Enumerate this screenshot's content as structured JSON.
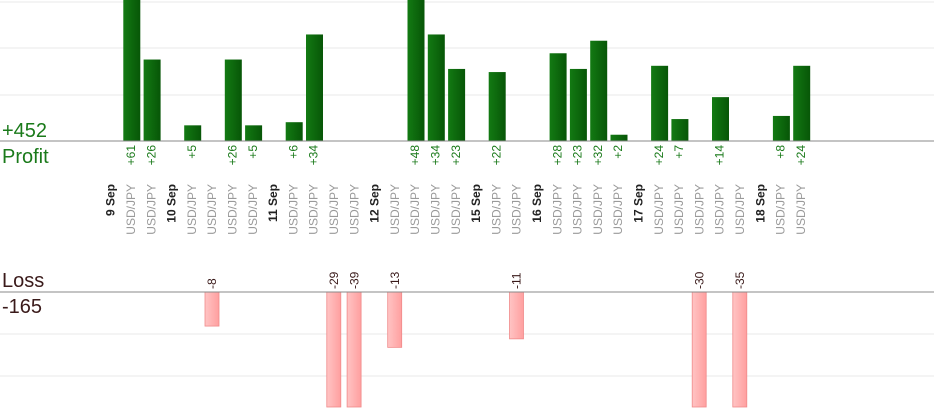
{
  "profit_label": "Profit",
  "profit_total": "+452",
  "loss_label": "Loss",
  "loss_total": "-165",
  "colors": {
    "profit_bar": "#0e6b0e",
    "profit_text": "#1a7a1a",
    "loss_bar": "#ffb0b0",
    "loss_bar_edge": "#f08a8a",
    "loss_text": "#3a1a1a",
    "axis": "#888888",
    "grid": "#e8e8e8"
  },
  "chart_data": {
    "type": "bar",
    "profit_max_visible": 45,
    "loss_max_visible": 27,
    "days": [
      {
        "label": "9 Sep",
        "trades": [
          {
            "symbol": "USD/JPY",
            "value": 61,
            "label": "+61"
          },
          {
            "symbol": "USD/JPY",
            "value": 26,
            "label": "+26"
          }
        ]
      },
      {
        "label": "10 Sep",
        "trades": [
          {
            "symbol": "USD/JPY",
            "value": 5,
            "label": "+5"
          },
          {
            "symbol": "USD/JPY",
            "value": -8,
            "label": "-8"
          },
          {
            "symbol": "USD/JPY",
            "value": 26,
            "label": "+26"
          },
          {
            "symbol": "USD/JPY",
            "value": 5,
            "label": "+5"
          }
        ]
      },
      {
        "label": "11 Sep",
        "trades": [
          {
            "symbol": "USD/JPY",
            "value": 6,
            "label": "+6"
          },
          {
            "symbol": "USD/JPY",
            "value": 34,
            "label": "+34"
          },
          {
            "symbol": "USD/JPY",
            "value": -29,
            "label": "-29"
          },
          {
            "symbol": "USD/JPY",
            "value": -39,
            "label": "-39"
          }
        ]
      },
      {
        "label": "12 Sep",
        "trades": [
          {
            "symbol": "USD/JPY",
            "value": -13,
            "label": "-13"
          },
          {
            "symbol": "USD/JPY",
            "value": 48,
            "label": "+48"
          },
          {
            "symbol": "USD/JPY",
            "value": 34,
            "label": "+34"
          },
          {
            "symbol": "USD/JPY",
            "value": 23,
            "label": "+23"
          }
        ]
      },
      {
        "label": "15 Sep",
        "trades": [
          {
            "symbol": "USD/JPY",
            "value": 22,
            "label": "+22"
          },
          {
            "symbol": "USD/JPY",
            "value": -11,
            "label": "-11"
          }
        ]
      },
      {
        "label": "16 Sep",
        "trades": [
          {
            "symbol": "USD/JPY",
            "value": 28,
            "label": "+28"
          },
          {
            "symbol": "USD/JPY",
            "value": 23,
            "label": "+23"
          },
          {
            "symbol": "USD/JPY",
            "value": 32,
            "label": "+32"
          },
          {
            "symbol": "USD/JPY",
            "value": 2,
            "label": "+2"
          }
        ]
      },
      {
        "label": "17 Sep",
        "trades": [
          {
            "symbol": "USD/JPY",
            "value": 24,
            "label": "+24"
          },
          {
            "symbol": "USD/JPY",
            "value": 7,
            "label": "+7"
          },
          {
            "symbol": "USD/JPY",
            "value": -30,
            "label": "-30"
          },
          {
            "symbol": "USD/JPY",
            "value": 14,
            "label": "+14"
          },
          {
            "symbol": "USD/JPY",
            "value": -35,
            "label": "-35"
          }
        ]
      },
      {
        "label": "18 Sep",
        "trades": [
          {
            "symbol": "USD/JPY",
            "value": 8,
            "label": "+8"
          },
          {
            "symbol": "USD/JPY",
            "value": 24,
            "label": "+24"
          }
        ]
      }
    ]
  }
}
